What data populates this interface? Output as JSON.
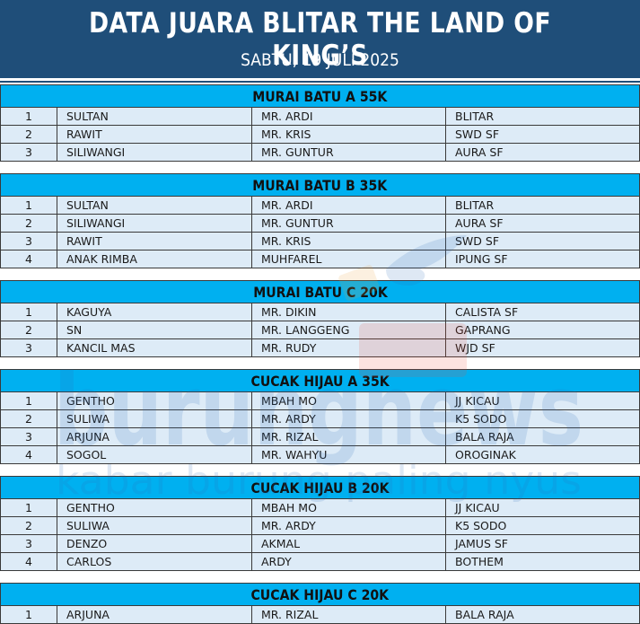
{
  "header": {
    "title": "DATA JUARA BLITAR THE LAND OF KING’S",
    "subtitle": "SABTU, 19 JULI 2025"
  },
  "watermark": {
    "brand": "burungnews",
    "tagline": "kabar burung paling nyus"
  },
  "sections": [
    {
      "title": "MURAI BATU A 55K",
      "rows": [
        [
          "1",
          "SULTAN",
          "MR. ARDI",
          "BLITAR"
        ],
        [
          "2",
          "RAWIT",
          "MR. KRIS",
          "SWD SF"
        ],
        [
          "3",
          "SILIWANGI",
          "MR. GUNTUR",
          "AURA SF"
        ]
      ]
    },
    {
      "title": "MURAI BATU B 35K",
      "rows": [
        [
          "1",
          "SULTAN",
          "MR. ARDI",
          "BLITAR"
        ],
        [
          "2",
          "SILIWANGI",
          "MR. GUNTUR",
          "AURA SF"
        ],
        [
          "3",
          "RAWIT",
          "MR. KRIS",
          "SWD SF"
        ],
        [
          "4",
          "ANAK RIMBA",
          "MUHFAREL",
          "IPUNG SF"
        ]
      ]
    },
    {
      "title": "MURAI BATU C 20K",
      "rows": [
        [
          "1",
          "KAGUYA",
          "MR. DIKIN",
          "CALISTA SF"
        ],
        [
          "2",
          "SN",
          "MR. LANGGENG",
          "GAPRANG"
        ],
        [
          "3",
          "KANCIL MAS",
          "MR. RUDY",
          "WJD SF"
        ]
      ]
    },
    {
      "title": "CUCAK HIJAU A 35K",
      "rows": [
        [
          "1",
          "GENTHO",
          "MBAH MO",
          "JJ KICAU"
        ],
        [
          "2",
          "SULIWA",
          "MR. ARDY",
          "K5 SODO"
        ],
        [
          "3",
          "ARJUNA",
          "MR. RIZAL",
          "BALA RAJA"
        ],
        [
          "4",
          "SOGOL",
          "MR. WAHYU",
          "OROGINAK"
        ]
      ]
    },
    {
      "title": "CUCAK HIJAU B 20K",
      "rows": [
        [
          "1",
          "GENTHO",
          "MBAH MO",
          "JJ KICAU"
        ],
        [
          "2",
          "SULIWA",
          "MR. ARDY",
          "K5 SODO"
        ],
        [
          "3",
          "DENZO",
          "AKMAL",
          "JAMUS SF"
        ],
        [
          "4",
          "CARLOS",
          "ARDY",
          "BOTHEM"
        ]
      ]
    },
    {
      "title": "CUCAK HIJAU C 20K",
      "rows": [
        [
          "1",
          "ARJUNA",
          "MR. RIZAL",
          "BALA RAJA"
        ]
      ]
    }
  ]
}
